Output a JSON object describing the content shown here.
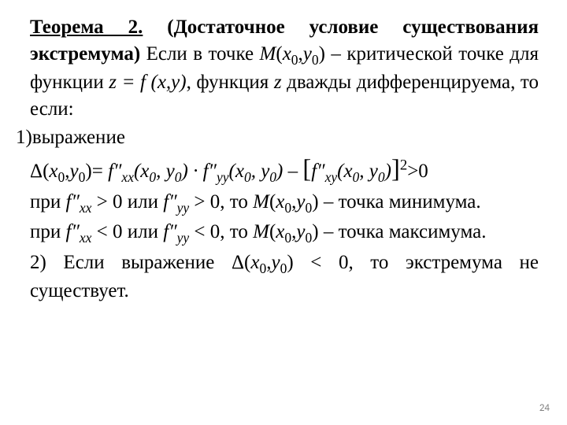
{
  "page_number": "24",
  "theorem": {
    "title_underlined_bold": "Теорема 2.",
    "title_bold_rest": "(Достаточное условие существования экстремума)",
    "text_after_title": " Если в точке ",
    "point_M": "M",
    "Mx0": "x",
    "My0": "y",
    "sub0a": "0",
    "sub0b": "0",
    "after_M": " – критической точке для функции ",
    "z_eq": "z = f",
    "z_args": "(x,y)",
    "after_z": ", функция ",
    "z_letter": "z",
    "tail": " дважды дифференцируема, то если:"
  },
  "item1_lead": "1)выражение",
  "delta": {
    "delta_sym": "Δ(",
    "x": "x",
    "s0a": "0",
    "comma": ",",
    "y": "y",
    "s0b": "0",
    "close_eq": ")= ",
    "fxx": "f″",
    "fxx_sub": "xx",
    "args1_open": "(",
    "x0": "x",
    "x0s": "0",
    "args1_mid": ", ",
    "y0": "y",
    "y0s": "0",
    "args1_close": ") · ",
    "fyy": "f″",
    "fyy_sub": "yy",
    "args2_open": "(",
    "x0b": "x",
    "x0bs": "0",
    "args2_mid": ", ",
    "y0b": "y",
    "y0bs": "0",
    "args2_close": ") – ",
    "br_open": "[",
    "fxy": "f″",
    "fxy_sub": "xy",
    "args3_open": "(",
    "x0c": "x",
    "x0cs": "0",
    "args3_mid": ", ",
    "y0c": "y",
    "y0cs": "0",
    "args3_close": ")",
    "br_close": "]",
    "sq": "2",
    "tail": ">0"
  },
  "min": {
    "pri": "при ",
    "fxx": "f″",
    "fxx_sub": "xx",
    "gt0": " > 0 или ",
    "fyy": "f″",
    "fyy_sub": "yy",
    "gt0b": " > 0, то ",
    "M": "M",
    "open": "(",
    "x": "x",
    "xs": "0",
    "comma": ",",
    "y": "y",
    "ys": "0",
    "close": ") – точка минимума."
  },
  "max": {
    "pri": "при ",
    "fxx": "f″",
    "fxx_sub": "xx",
    "lt0": " < 0 или ",
    "fyy": "f″",
    "fyy_sub": "yy",
    "lt0b": " < 0, то ",
    "M": "M",
    "open": "(",
    "x": "x",
    "xs": "0",
    "comma": ",",
    "y": "y",
    "ys": "0",
    "close": ") – точка максимума."
  },
  "item2": {
    "lead": "2) Если выражение Δ(",
    "x": "x",
    "xs": "0",
    "comma": ",",
    "y": "y",
    "ys": "0",
    "tail": ") < 0, то экстремума не существует."
  }
}
